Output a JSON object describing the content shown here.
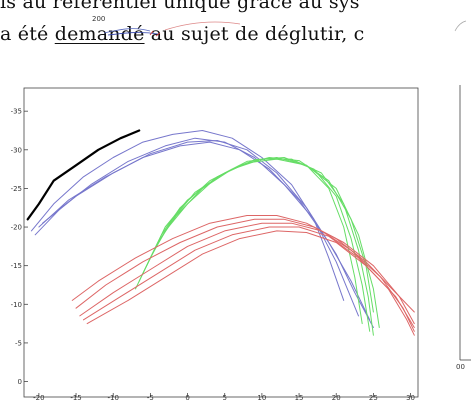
{
  "body_text": {
    "line1": "is au référentiel unique grâce au sys",
    "line2_before": "a été ",
    "line2_underlined": "demandé",
    "line2_after": " au sujet de déglutir, c"
  },
  "side_ticks": {
    "top_fragment": "200",
    "right_fragment": "00"
  },
  "chart_data": {
    "type": "line",
    "title": "",
    "xlabel": "",
    "ylabel": "",
    "xlim": [
      -22,
      31
    ],
    "ylim": [
      -2,
      38
    ],
    "xticks": [
      -20,
      -15,
      -10,
      -5,
      0,
      5,
      10,
      15,
      20,
      25,
      30
    ],
    "yticks": [
      0,
      5,
      10,
      15,
      20,
      25,
      30,
      35
    ],
    "xtick_labels": [
      "-20",
      "-15",
      "-10",
      "-5",
      "0",
      "5",
      "10",
      "15",
      "20",
      "25",
      "30"
    ],
    "ytick_labels": [
      "0",
      "-5",
      "-10",
      "-15",
      "-20",
      "-25",
      "-30",
      "-35"
    ],
    "grid": false,
    "series": [
      {
        "color": "#000000",
        "width": 2.2,
        "points": [
          [
            -21.5,
            21
          ],
          [
            -20,
            23
          ],
          [
            -18,
            26
          ],
          [
            -15,
            28
          ],
          [
            -12,
            30
          ],
          [
            -9,
            31.5
          ],
          [
            -6.5,
            32.5
          ]
        ]
      },
      {
        "color": "#7777cc",
        "width": 1,
        "points": [
          [
            -21,
            19.5
          ],
          [
            -18,
            23
          ],
          [
            -14,
            26.5
          ],
          [
            -10,
            29
          ],
          [
            -6,
            31
          ],
          [
            -2,
            32
          ],
          [
            2,
            32.5
          ],
          [
            6,
            31.5
          ],
          [
            10,
            29
          ],
          [
            14,
            25.5
          ],
          [
            17,
            21
          ],
          [
            19,
            16
          ],
          [
            21,
            10.5
          ]
        ]
      },
      {
        "color": "#7777cc",
        "width": 1,
        "points": [
          [
            -20.5,
            19
          ],
          [
            -17,
            22.5
          ],
          [
            -13,
            25.5
          ],
          [
            -8,
            28.5
          ],
          [
            -3,
            30.5
          ],
          [
            1,
            31.5
          ],
          [
            5,
            31
          ],
          [
            9,
            29
          ],
          [
            13,
            25.5
          ],
          [
            17,
            21
          ],
          [
            20,
            15.5
          ],
          [
            23,
            8.5
          ]
        ]
      },
      {
        "color": "#7777cc",
        "width": 1,
        "points": [
          [
            -20,
            20
          ],
          [
            -16,
            23.5
          ],
          [
            -11,
            26.5
          ],
          [
            -6,
            29
          ],
          [
            -1,
            30.5
          ],
          [
            3,
            31
          ],
          [
            7,
            30
          ],
          [
            11,
            27.5
          ],
          [
            15,
            23.5
          ],
          [
            19,
            18
          ],
          [
            22,
            13
          ],
          [
            24.5,
            8
          ]
        ]
      },
      {
        "color": "#7777cc",
        "width": 1,
        "points": [
          [
            -19.5,
            20.5
          ],
          [
            -15,
            24
          ],
          [
            -10,
            27
          ],
          [
            -5,
            29.5
          ],
          [
            0,
            31
          ],
          [
            4,
            31.2
          ],
          [
            8,
            30
          ],
          [
            12,
            27
          ],
          [
            16,
            22.5
          ],
          [
            20,
            16.5
          ],
          [
            22.5,
            11.5
          ],
          [
            25,
            7
          ]
        ]
      },
      {
        "color": "#66dd66",
        "width": 1,
        "points": [
          [
            -7,
            12
          ],
          [
            -5,
            16
          ],
          [
            -3,
            20
          ],
          [
            0,
            23.5
          ],
          [
            4,
            26.5
          ],
          [
            8,
            28.5
          ],
          [
            12,
            29
          ],
          [
            16,
            28
          ],
          [
            19,
            25
          ],
          [
            21,
            20
          ],
          [
            22.5,
            13.5
          ],
          [
            23.5,
            7.5
          ]
        ]
      },
      {
        "color": "#66dd66",
        "width": 1,
        "points": [
          [
            -6.5,
            13
          ],
          [
            -4.5,
            17
          ],
          [
            -2,
            21
          ],
          [
            1,
            24.5
          ],
          [
            5,
            27
          ],
          [
            9,
            28.7
          ],
          [
            13,
            29
          ],
          [
            17,
            27.5
          ],
          [
            20,
            24
          ],
          [
            22,
            18.5
          ],
          [
            23.5,
            12.5
          ],
          [
            24.5,
            6.5
          ]
        ]
      },
      {
        "color": "#66dd66",
        "width": 1,
        "points": [
          [
            -6,
            14
          ],
          [
            -4,
            18
          ],
          [
            -1.5,
            21.5
          ],
          [
            2,
            25
          ],
          [
            6,
            27.5
          ],
          [
            10,
            28.8
          ],
          [
            14,
            28.8
          ],
          [
            18,
            27
          ],
          [
            21,
            23
          ],
          [
            23,
            17
          ],
          [
            24.3,
            11
          ],
          [
            25,
            6
          ]
        ]
      },
      {
        "color": "#66dd66",
        "width": 1,
        "points": [
          [
            -5.5,
            15
          ],
          [
            -3.5,
            19
          ],
          [
            -1,
            22.5
          ],
          [
            3,
            26
          ],
          [
            7,
            28
          ],
          [
            11,
            29
          ],
          [
            15,
            28.6
          ],
          [
            19,
            26
          ],
          [
            22,
            21
          ],
          [
            24,
            15
          ],
          [
            25,
            9
          ]
        ]
      },
      {
        "color": "#66dd66",
        "width": 1,
        "points": [
          [
            -5,
            16
          ],
          [
            -3,
            19.5
          ],
          [
            0,
            23
          ],
          [
            4,
            26.5
          ],
          [
            8,
            28.3
          ],
          [
            12,
            28.8
          ],
          [
            16,
            28
          ],
          [
            20,
            25
          ],
          [
            23,
            19
          ],
          [
            25,
            12
          ],
          [
            25.8,
            7
          ]
        ]
      },
      {
        "color": "#dd6666",
        "width": 1,
        "points": [
          [
            -15.5,
            10.5
          ],
          [
            -12,
            13
          ],
          [
            -7,
            16
          ],
          [
            -2,
            18.5
          ],
          [
            3,
            20.5
          ],
          [
            8,
            21.5
          ],
          [
            12,
            21.5
          ],
          [
            16,
            20.5
          ],
          [
            20,
            18.5
          ],
          [
            24,
            15.5
          ],
          [
            27.5,
            12
          ],
          [
            30.5,
            9
          ]
        ]
      },
      {
        "color": "#dd6666",
        "width": 1,
        "points": [
          [
            -15,
            9.5
          ],
          [
            -11,
            12.5
          ],
          [
            -6,
            15.5
          ],
          [
            -1,
            18
          ],
          [
            4,
            20
          ],
          [
            9,
            21
          ],
          [
            13,
            21
          ],
          [
            17,
            20
          ],
          [
            21,
            18
          ],
          [
            25,
            15
          ],
          [
            28.5,
            11
          ],
          [
            30.5,
            7.5
          ]
        ]
      },
      {
        "color": "#dd6666",
        "width": 1,
        "points": [
          [
            -14.5,
            8.5
          ],
          [
            -10,
            11.5
          ],
          [
            -5,
            14.5
          ],
          [
            0,
            17.5
          ],
          [
            5,
            19.5
          ],
          [
            10,
            20.5
          ],
          [
            14,
            20.5
          ],
          [
            18,
            19.5
          ],
          [
            22,
            17
          ],
          [
            26,
            13.5
          ],
          [
            29,
            9.5
          ],
          [
            30.5,
            6.5
          ]
        ]
      },
      {
        "color": "#dd6666",
        "width": 1,
        "points": [
          [
            -14,
            8
          ],
          [
            -9,
            11
          ],
          [
            -4,
            14
          ],
          [
            1,
            17
          ],
          [
            6,
            19
          ],
          [
            11,
            20
          ],
          [
            15,
            20
          ],
          [
            19,
            18.8
          ],
          [
            23,
            16
          ],
          [
            27,
            12
          ],
          [
            29.5,
            8
          ],
          [
            30.5,
            6
          ]
        ]
      },
      {
        "color": "#dd6666",
        "width": 1,
        "points": [
          [
            -13.5,
            7.5
          ],
          [
            -8,
            10.5
          ],
          [
            -3,
            13.5
          ],
          [
            2,
            16.5
          ],
          [
            7,
            18.5
          ],
          [
            12,
            19.5
          ],
          [
            16,
            19.3
          ],
          [
            20,
            18
          ],
          [
            24,
            15
          ],
          [
            28,
            11
          ],
          [
            30.5,
            7
          ]
        ]
      }
    ]
  }
}
